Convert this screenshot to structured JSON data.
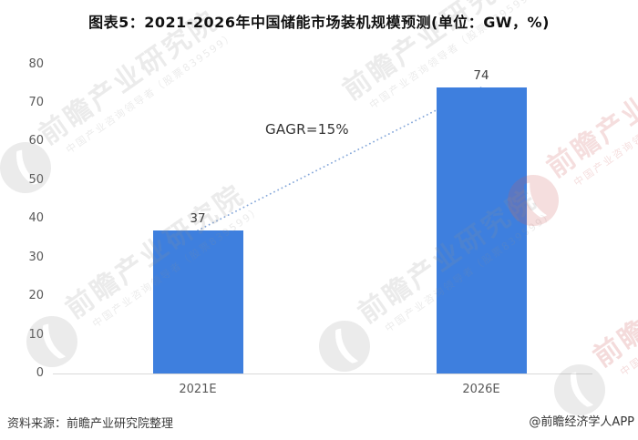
{
  "title": "图表5：2021-2026年中国储能市场装机规模预测(单位：GW，%)",
  "footer": {
    "source": "资料来源：前瞻产业研究院整理",
    "credit": "@前瞻经济学人APP"
  },
  "watermark": {
    "big_text": "前瞻产业研究院",
    "small_text": "中国产业咨询领导者（股票839599）",
    "logo_icon": "qianzhan-circle-logo",
    "gray_color": "#e7e7e7",
    "red_color": "#f5dcdc"
  },
  "chart_data": {
    "type": "bar",
    "categories": [
      "2021E",
      "2026E"
    ],
    "values": [
      37,
      74
    ],
    "data_labels": [
      "37",
      "74"
    ],
    "annotation": {
      "text": "GAGR=15%"
    },
    "title": "图表5：2021-2026年中国储能市场装机规模预测(单位：GW，%)",
    "xlabel": "",
    "ylabel": "",
    "unit": "GW",
    "ylim": [
      0,
      80
    ],
    "yticks": [
      0,
      10,
      20,
      30,
      40,
      50,
      60,
      70,
      80
    ],
    "grid": false,
    "legend": "none",
    "bar_color": "#3E7FDE",
    "axis_color": "#d9d9d9",
    "tick_label_color": "#595959",
    "connector": {
      "style": "dotted",
      "color": "#86A8DA",
      "from": "2021E",
      "to": "2026E"
    }
  }
}
